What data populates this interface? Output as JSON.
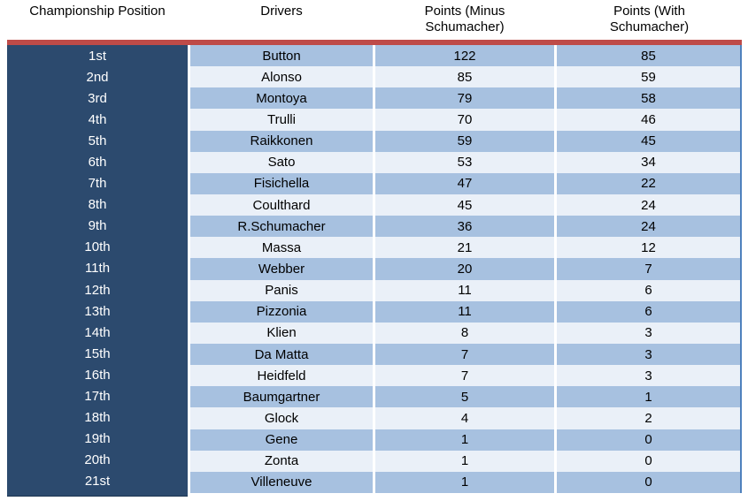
{
  "table": {
    "headers": [
      "Championship Position",
      "Drivers",
      "Points (Minus Schumacher)",
      "Points (With Schumacher)"
    ]
  },
  "chart_data": {
    "type": "table",
    "columns": [
      "Championship Position",
      "Drivers",
      "Points (Minus Schumacher)",
      "Points (With Schumacher)"
    ],
    "rows": [
      [
        "1st",
        "Button",
        122,
        85
      ],
      [
        "2nd",
        "Alonso",
        85,
        59
      ],
      [
        "3rd",
        "Montoya",
        79,
        58
      ],
      [
        "4th",
        "Trulli",
        70,
        46
      ],
      [
        "5th",
        "Raikkonen",
        59,
        45
      ],
      [
        "6th",
        "Sato",
        53,
        34
      ],
      [
        "7th",
        "Fisichella",
        47,
        22
      ],
      [
        "8th",
        "Coulthard",
        45,
        24
      ],
      [
        "9th",
        "R.Schumacher",
        36,
        24
      ],
      [
        "10th",
        "Massa",
        21,
        12
      ],
      [
        "11th",
        "Webber",
        20,
        7
      ],
      [
        "12th",
        "Panis",
        11,
        6
      ],
      [
        "13th",
        "Pizzonia",
        11,
        6
      ],
      [
        "14th",
        "Klien",
        8,
        3
      ],
      [
        "15th",
        "Da Matta",
        7,
        3
      ],
      [
        "16th",
        "Heidfeld",
        7,
        3
      ],
      [
        "17th",
        "Baumgartner",
        5,
        1
      ],
      [
        "18th",
        "Glock",
        4,
        2
      ],
      [
        "19th",
        "Gene",
        1,
        0
      ],
      [
        "20th",
        "Zonta",
        1,
        0
      ],
      [
        "21st",
        "Villeneuve",
        1,
        0
      ]
    ]
  },
  "colors": {
    "accent_bar": "#BE4B48",
    "position_column_bg": "#2C4A6E",
    "position_column_edge": "#1D3550",
    "row_odd_bg": "#A7C1E0",
    "row_even_bg": "#EAF0F8",
    "table_right_border": "#4F81BD",
    "position_text": "#FFFFFF",
    "cell_text": "#000000",
    "header_text": "#000000"
  }
}
